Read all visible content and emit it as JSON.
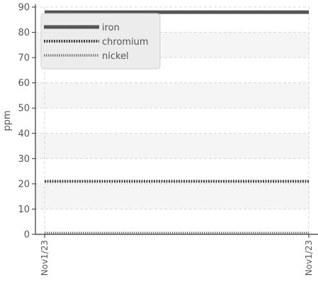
{
  "chart_data": {
    "type": "line",
    "title": "",
    "xlabel": "",
    "ylabel": "ppm",
    "ylim": [
      0,
      90
    ],
    "yticks": [
      0,
      10,
      20,
      30,
      40,
      50,
      60,
      70,
      80,
      90
    ],
    "x": [
      "Nov1/23",
      "Nov1/23"
    ],
    "series": [
      {
        "name": "iron",
        "values": [
          88,
          88
        ],
        "color": "#555555",
        "style": "solid"
      },
      {
        "name": "chromium",
        "values": [
          21,
          21
        ],
        "color": "#444444",
        "style": "dotted"
      },
      {
        "name": "nickel",
        "values": [
          0.5,
          0.5
        ],
        "color": "#777777",
        "style": "dotted-thin"
      }
    ],
    "grid": true,
    "legend_position": "top-left",
    "colors": {
      "axis": "#333333",
      "grid": "#d8d8d8",
      "band": "#f5f5f5",
      "text": "#555555",
      "legend_bg": "#ececec"
    }
  }
}
